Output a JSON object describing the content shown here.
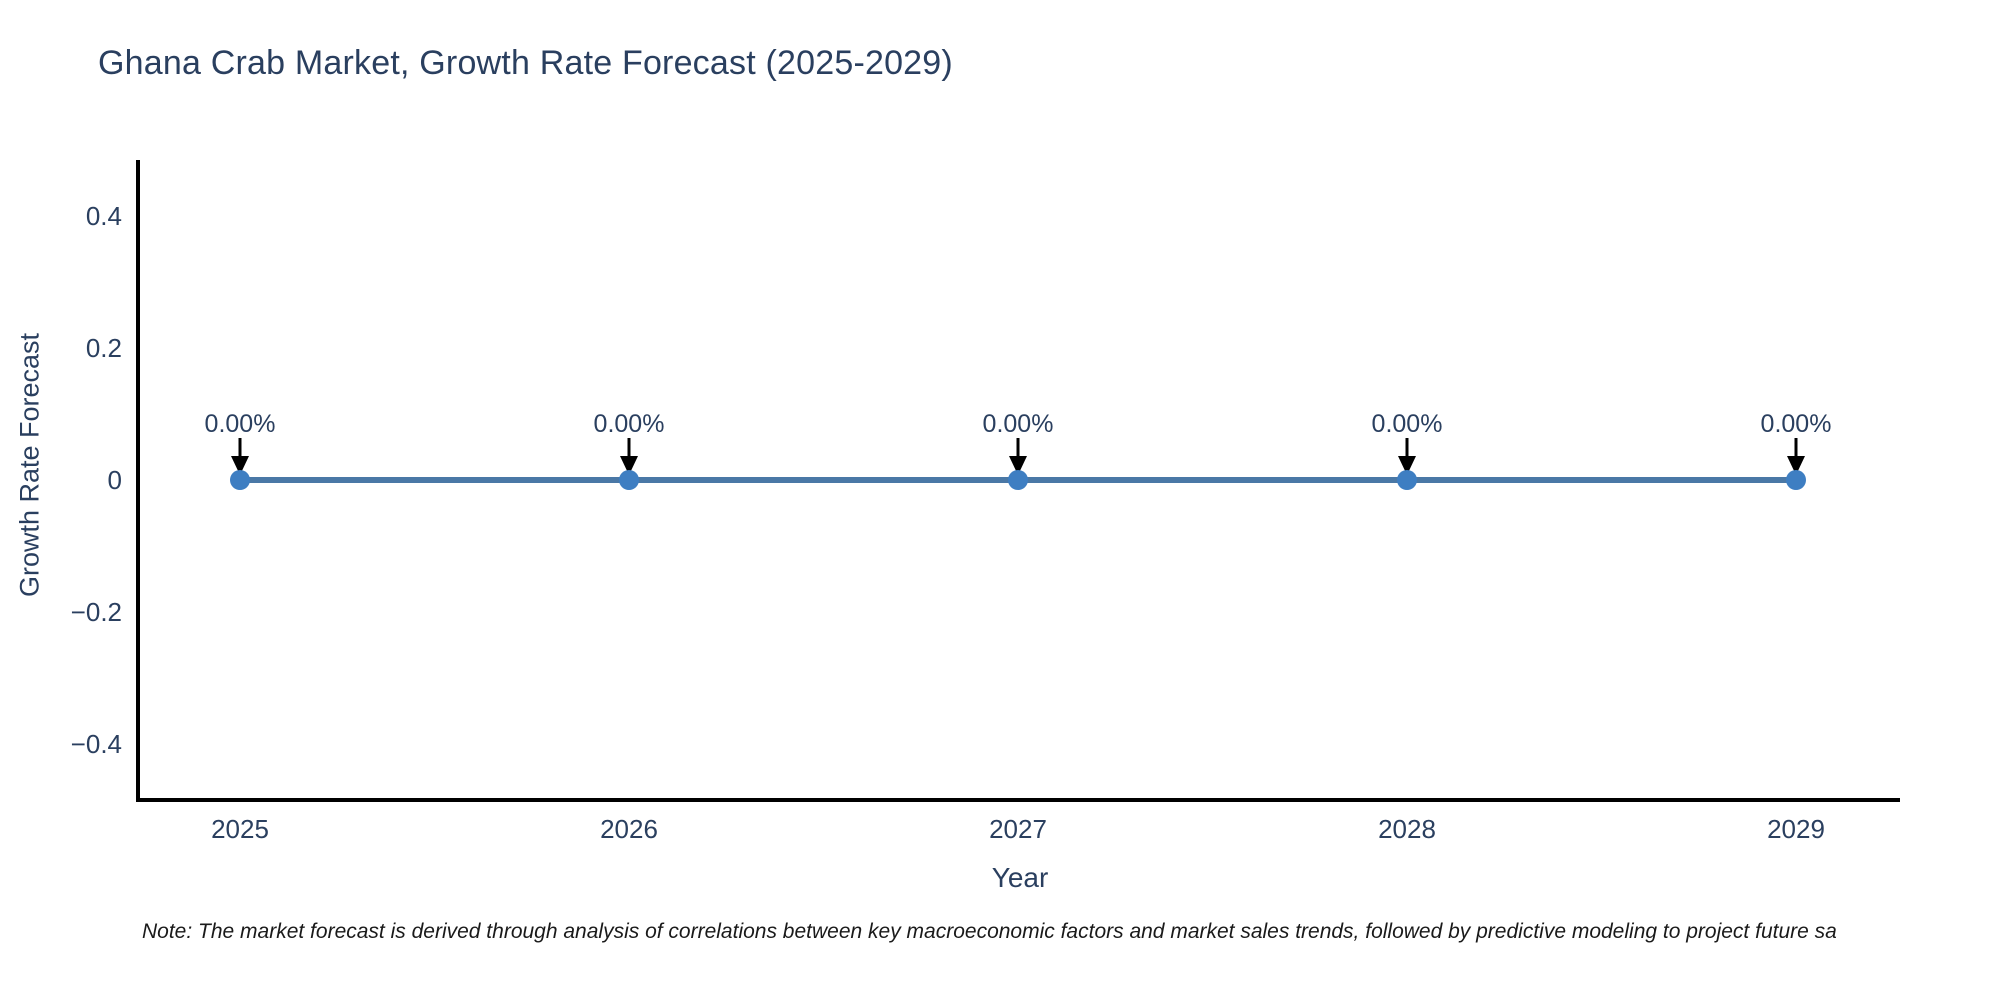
{
  "chart_data": {
    "type": "line",
    "title": "Ghana Crab Market, Growth Rate Forecast (2025-2029)",
    "xlabel": "Year",
    "ylabel": "Growth Rate Forecast",
    "x": [
      2025,
      2026,
      2027,
      2028,
      2029
    ],
    "values": [
      0,
      0,
      0,
      0,
      0
    ],
    "point_labels": [
      "0.00%",
      "0.00%",
      "0.00%",
      "0.00%",
      "0.00%"
    ],
    "ylim": [
      -0.485,
      0.485
    ],
    "yticks": [
      0.4,
      0.2,
      0,
      -0.2,
      -0.4
    ],
    "ytick_labels": [
      "0.4",
      "0.2",
      "0",
      "−0.2",
      "−0.4"
    ],
    "grid": false,
    "legend": "none",
    "annotation_style": "down-arrow",
    "colors": {
      "line": "#4a78a6",
      "marker": "#3e7ec2",
      "arrow": "#000000",
      "axis": "#000000",
      "text": "#2a3f5f",
      "note_text": "#1a1a1a"
    },
    "note": "Note: The market forecast is derived through analysis of correlations between key macroeconomic factors and market sales trends, followed by predictive modeling to project future sa"
  }
}
